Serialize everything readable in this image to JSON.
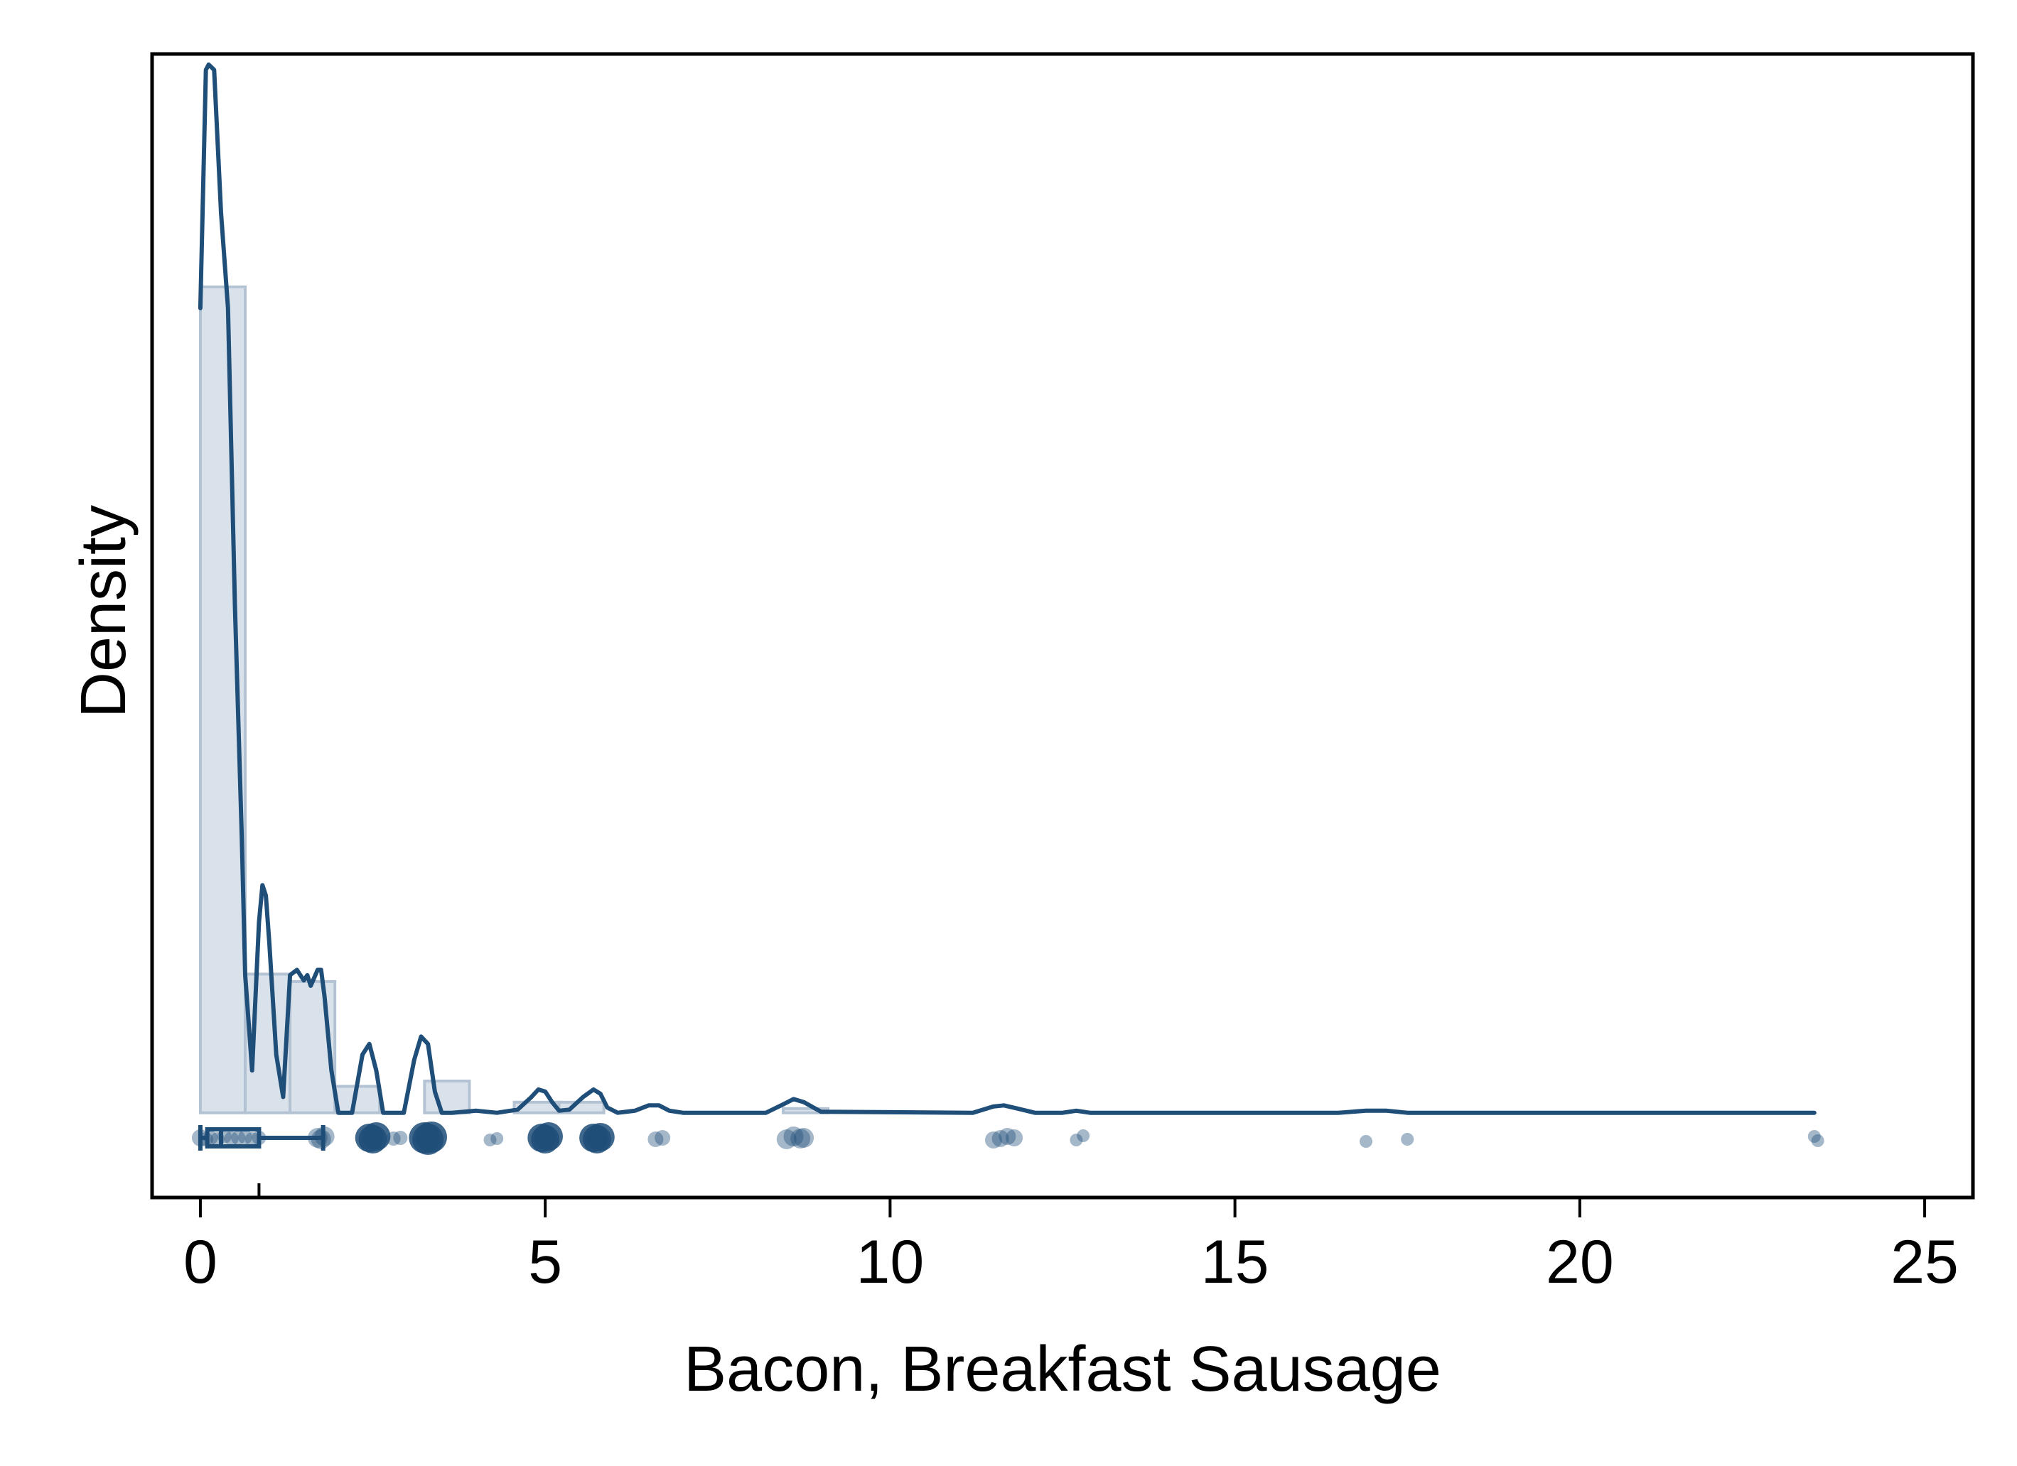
{
  "chart_data": {
    "type": "histogram",
    "xlabel": "Bacon, Breakfast Sausage",
    "ylabel": "Density",
    "xlim": [
      -0.7,
      25.7
    ],
    "ylim": [
      -0.08,
      1.0
    ],
    "x_ticks": [
      "0",
      "5",
      "10",
      "15",
      "20",
      "25"
    ],
    "x_tick_values": [
      0,
      5,
      10,
      15,
      20,
      25
    ],
    "grid": false,
    "legend": "none",
    "colors": {
      "line": "#1f4e79",
      "bar_fill": "#d9e1ea",
      "bar_edge": "#b3c3d3",
      "points": "#1f4e79",
      "frame": "#000000"
    },
    "histogram": {
      "bin_edges": [
        0,
        0.65,
        1.3,
        1.95,
        2.6,
        3.25,
        3.9,
        4.55,
        5.2,
        5.85,
        6.5,
        7.15,
        7.8,
        8.45,
        9.1
      ],
      "density": [
        0.78,
        0.131,
        0.124,
        0.025,
        0.0,
        0.03,
        0.0,
        0.01,
        0.01,
        0.0,
        0.0,
        0.0,
        0.0,
        0.004
      ]
    },
    "kde": {
      "x": [
        0.0,
        0.08,
        0.12,
        0.2,
        0.3,
        0.4,
        0.5,
        0.6,
        0.65,
        0.75,
        0.85,
        0.9,
        0.95,
        1.0,
        1.1,
        1.2,
        1.3,
        1.4,
        1.5,
        1.55,
        1.6,
        1.7,
        1.75,
        1.8,
        1.9,
        2.0,
        2.1,
        2.2,
        2.35,
        2.45,
        2.55,
        2.65,
        2.75,
        2.95,
        3.1,
        3.2,
        3.3,
        3.4,
        3.5,
        3.65,
        4.0,
        4.3,
        4.6,
        4.8,
        4.9,
        5.0,
        5.1,
        5.2,
        5.35,
        5.55,
        5.7,
        5.8,
        5.9,
        6.05,
        6.3,
        6.5,
        6.65,
        6.8,
        7.0,
        8.2,
        8.45,
        8.6,
        8.75,
        9.0,
        11.2,
        11.5,
        11.65,
        11.85,
        12.1,
        12.5,
        12.7,
        12.9,
        16.5,
        16.9,
        17.2,
        17.5,
        17.8,
        23.4
      ],
      "y": [
        0.76,
        0.985,
        0.99,
        0.985,
        0.85,
        0.76,
        0.48,
        0.26,
        0.13,
        0.04,
        0.18,
        0.215,
        0.205,
        0.16,
        0.055,
        0.015,
        0.13,
        0.135,
        0.125,
        0.13,
        0.12,
        0.135,
        0.135,
        0.11,
        0.04,
        0.0,
        0.0,
        0.0,
        0.055,
        0.065,
        0.04,
        0.0,
        0.0,
        0.0,
        0.05,
        0.072,
        0.065,
        0.02,
        0.0,
        0.0,
        0.002,
        0.0,
        0.003,
        0.015,
        0.022,
        0.02,
        0.01,
        0.002,
        0.003,
        0.015,
        0.022,
        0.018,
        0.005,
        0.0,
        0.002,
        0.007,
        0.007,
        0.002,
        0.0,
        0.0,
        0.008,
        0.013,
        0.01,
        0.001,
        0.0,
        0.006,
        0.007,
        0.004,
        0.0,
        0.0,
        0.002,
        0.0,
        0.0,
        0.002,
        0.002,
        0.0,
        0.0,
        0.0
      ]
    },
    "boxplot": {
      "min": 0.0,
      "q1": 0.1,
      "median": 0.3,
      "q3": 0.85,
      "max": 1.78,
      "mean": 0.85
    },
    "points": {
      "x": [
        0.0,
        0.08,
        0.15,
        0.25,
        0.35,
        0.45,
        0.55,
        0.65,
        0.75,
        0.85,
        1.7,
        1.75,
        1.8,
        2.45,
        2.5,
        2.55,
        2.8,
        2.9,
        3.25,
        3.3,
        3.35,
        4.2,
        4.3,
        4.95,
        5.0,
        5.05,
        5.7,
        5.75,
        5.8,
        6.6,
        6.7,
        8.5,
        8.6,
        8.7,
        8.75,
        11.5,
        11.6,
        11.7,
        11.8,
        12.7,
        12.8,
        16.9,
        17.5,
        23.4,
        23.45
      ],
      "y": [
        0.0,
        0.002,
        0.0,
        0.002,
        -0.002,
        0.001,
        0.0,
        -0.001,
        0.002,
        0.0,
        0.0,
        0.002,
        -0.002,
        0.0,
        0.002,
        -0.002,
        0.001,
        0.0,
        0.0,
        0.002,
        -0.001,
        0.003,
        0.001,
        0.0,
        0.002,
        -0.002,
        0.0,
        0.002,
        -0.001,
        0.002,
        0.0,
        0.002,
        -0.002,
        0.001,
        0.0,
        0.003,
        0.001,
        -0.002,
        0.0,
        0.003,
        -0.003,
        0.005,
        0.002,
        -0.002,
        0.004
      ],
      "size": [
        12,
        10,
        10,
        10,
        10,
        10,
        10,
        10,
        10,
        10,
        14,
        14,
        14,
        20,
        20,
        20,
        10,
        10,
        22,
        22,
        22,
        9,
        9,
        20,
        20,
        20,
        20,
        20,
        20,
        11,
        11,
        14,
        14,
        14,
        14,
        12,
        12,
        12,
        12,
        9,
        9,
        9,
        9,
        9,
        9
      ]
    }
  }
}
